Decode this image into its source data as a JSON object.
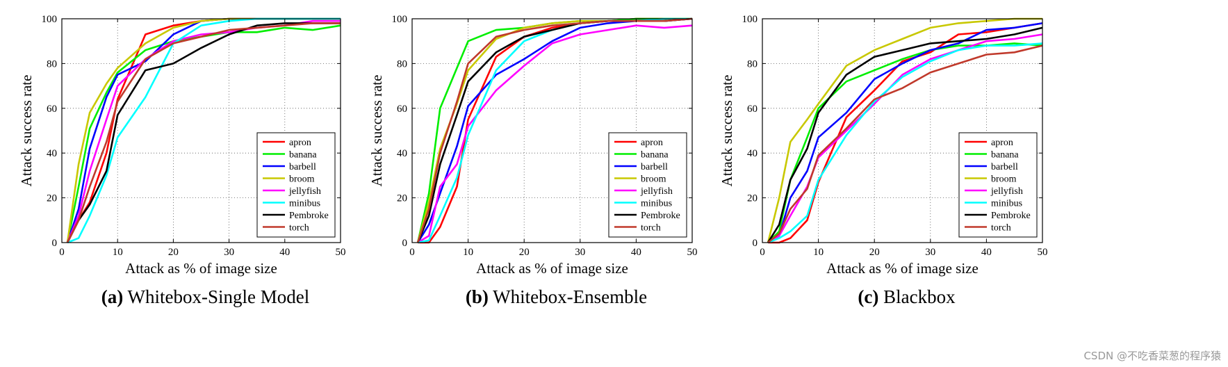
{
  "watermark": "CSDN @不吃香菜葱的程序猿",
  "colors": {
    "apron": "#ff0000",
    "banana": "#00ee00",
    "barbell": "#0000ff",
    "broom": "#c8c800",
    "jellyfish": "#ff00ff",
    "minibus": "#00ffff",
    "Pembroke": "#000000",
    "torch": "#c0392b"
  },
  "chart_data": [
    {
      "type": "line",
      "panel_label": "(a)",
      "caption": "Whitebox-Single Model",
      "xlabel": "Attack as % of image size",
      "ylabel": "Attack success rate",
      "xlim": [
        0,
        50
      ],
      "ylim": [
        0,
        100
      ],
      "xticks": [
        0,
        10,
        20,
        30,
        40,
        50
      ],
      "yticks": [
        0,
        20,
        40,
        60,
        80,
        100
      ],
      "grid": true,
      "legend_position": "bottom-right",
      "x": [
        1,
        3,
        5,
        8,
        10,
        15,
        20,
        25,
        30,
        35,
        40,
        45,
        50
      ],
      "series": [
        {
          "name": "apron",
          "values": [
            0,
            10,
            18,
            40,
            64,
            93,
            97,
            99,
            100,
            100,
            100,
            100,
            100
          ]
        },
        {
          "name": "banana",
          "values": [
            0,
            25,
            51,
            67,
            76,
            86,
            90,
            92,
            94,
            94,
            96,
            95,
            97
          ]
        },
        {
          "name": "barbell",
          "values": [
            0,
            15,
            42,
            65,
            75,
            81,
            93,
            99,
            100,
            100,
            100,
            100,
            100
          ]
        },
        {
          "name": "broom",
          "values": [
            0,
            35,
            58,
            71,
            78,
            89,
            96,
            99,
            100,
            100,
            100,
            100,
            100
          ]
        },
        {
          "name": "jellyfish",
          "values": [
            0,
            12,
            32,
            55,
            70,
            82,
            90,
            93,
            94,
            96,
            97,
            99,
            99
          ]
        },
        {
          "name": "minibus",
          "values": [
            0,
            2,
            12,
            30,
            47,
            65,
            89,
            97,
            99,
            100,
            100,
            100,
            100
          ]
        },
        {
          "name": "Pembroke",
          "values": [
            0,
            10,
            17,
            32,
            57,
            77,
            80,
            87,
            93,
            97,
            98,
            98,
            98
          ]
        },
        {
          "name": "torch",
          "values": [
            0,
            10,
            25,
            45,
            63,
            82,
            89,
            92,
            95,
            96,
            97,
            98,
            98
          ]
        }
      ]
    },
    {
      "type": "line",
      "panel_label": "(b)",
      "caption": "Whitebox-Ensemble",
      "xlabel": "Attack as % of image size",
      "ylabel": "Attack success rate",
      "xlim": [
        0,
        50
      ],
      "ylim": [
        0,
        100
      ],
      "xticks": [
        0,
        10,
        20,
        30,
        40,
        50
      ],
      "yticks": [
        0,
        20,
        40,
        60,
        80,
        100
      ],
      "grid": true,
      "legend_position": "bottom-right",
      "x": [
        1,
        3,
        5,
        8,
        10,
        15,
        20,
        25,
        30,
        35,
        40,
        45,
        50
      ],
      "series": [
        {
          "name": "apron",
          "values": [
            0,
            0,
            7,
            25,
            55,
            83,
            92,
            96,
            98,
            99,
            100,
            100,
            100
          ]
        },
        {
          "name": "banana",
          "values": [
            0,
            22,
            60,
            78,
            90,
            95,
            96,
            98,
            99,
            99,
            100,
            100,
            100
          ]
        },
        {
          "name": "barbell",
          "values": [
            0,
            8,
            22,
            43,
            61,
            75,
            82,
            90,
            96,
            98,
            99,
            99,
            100
          ]
        },
        {
          "name": "broom",
          "values": [
            0,
            18,
            42,
            62,
            77,
            91,
            96,
            98,
            99,
            99,
            99,
            100,
            100
          ]
        },
        {
          "name": "jellyfish",
          "values": [
            0,
            3,
            25,
            35,
            52,
            68,
            79,
            89,
            93,
            95,
            97,
            96,
            97
          ]
        },
        {
          "name": "minibus",
          "values": [
            0,
            1,
            12,
            29,
            48,
            77,
            90,
            95,
            98,
            99,
            99,
            100,
            100
          ]
        },
        {
          "name": "Pembroke",
          "values": [
            0,
            12,
            35,
            57,
            72,
            85,
            92,
            95,
            98,
            99,
            99,
            99,
            100
          ]
        },
        {
          "name": "torch",
          "values": [
            0,
            15,
            40,
            63,
            80,
            92,
            95,
            97,
            98,
            99,
            99,
            99,
            100
          ]
        }
      ]
    },
    {
      "type": "line",
      "panel_label": "(c)",
      "caption": "Blackbox",
      "xlabel": "Attack as % of image size",
      "ylabel": "Attack success rate",
      "xlim": [
        0,
        50
      ],
      "ylim": [
        0,
        100
      ],
      "xticks": [
        0,
        10,
        20,
        30,
        40,
        50
      ],
      "yticks": [
        0,
        20,
        40,
        60,
        80,
        100
      ],
      "grid": true,
      "legend_position": "bottom-right",
      "x": [
        1,
        3,
        5,
        8,
        10,
        15,
        20,
        25,
        30,
        35,
        40,
        45,
        50
      ],
      "series": [
        {
          "name": "apron",
          "values": [
            0,
            0,
            2,
            10,
            27,
            56,
            68,
            81,
            85,
            93,
            94,
            96,
            98
          ]
        },
        {
          "name": "banana",
          "values": [
            0,
            5,
            28,
            47,
            60,
            72,
            77,
            82,
            86,
            88,
            88,
            89,
            88
          ]
        },
        {
          "name": "barbell",
          "values": [
            0,
            3,
            20,
            32,
            47,
            58,
            73,
            80,
            86,
            89,
            95,
            96,
            98
          ]
        },
        {
          "name": "broom",
          "values": [
            0,
            20,
            45,
            55,
            62,
            79,
            86,
            91,
            96,
            98,
            99,
            100,
            100
          ]
        },
        {
          "name": "jellyfish",
          "values": [
            0,
            3,
            12,
            25,
            38,
            50,
            62,
            75,
            82,
            86,
            90,
            91,
            93
          ]
        },
        {
          "name": "minibus",
          "values": [
            0,
            2,
            5,
            12,
            28,
            48,
            63,
            74,
            81,
            86,
            88,
            88,
            89
          ]
        },
        {
          "name": "Pembroke",
          "values": [
            0,
            8,
            28,
            42,
            58,
            75,
            83,
            86,
            89,
            90,
            91,
            93,
            96
          ]
        },
        {
          "name": "torch",
          "values": [
            0,
            4,
            15,
            24,
            39,
            51,
            64,
            69,
            76,
            80,
            84,
            85,
            88
          ]
        }
      ]
    }
  ]
}
